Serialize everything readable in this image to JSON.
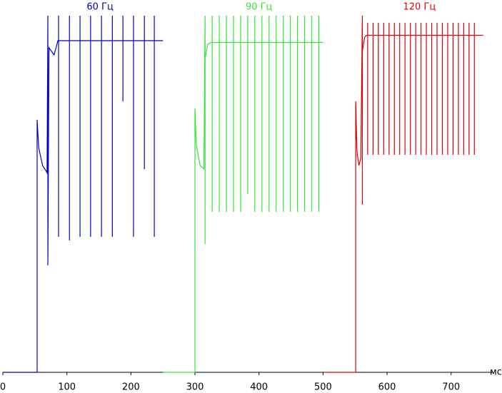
{
  "chart_data": {
    "type": "line",
    "x_label": "мс",
    "xlim": [
      0,
      765
    ],
    "ylim": [
      0,
      100
    ],
    "xticks": [
      0,
      100,
      200,
      300,
      400,
      500,
      600,
      700
    ],
    "series": [
      {
        "name": "60 Гц",
        "color": "#0000cc",
        "x": [
          0,
          53.5,
          53.5,
          56,
          62,
          69,
          70.3,
          70.3,
          72,
          80,
          86,
          87,
          87,
          87,
          87,
          104,
          104,
          104,
          104,
          120.5,
          120.5,
          120.5,
          120.5,
          137,
          137,
          137,
          137,
          154,
          154,
          154,
          154,
          171,
          171,
          171,
          171,
          187.5,
          187.5,
          187.5,
          187.5,
          204,
          204,
          204,
          204,
          221,
          221,
          221,
          221,
          236.5,
          236.5,
          236.5,
          236.5,
          250
        ],
        "values": [
          0,
          0,
          70.8,
          63,
          58,
          56,
          100,
          30,
          91,
          89,
          93,
          93,
          100,
          38,
          93,
          93,
          100,
          37,
          93,
          93,
          100,
          38,
          93,
          93,
          100,
          38,
          93,
          93,
          100,
          38,
          93,
          93,
          100,
          38,
          93,
          93,
          100,
          76,
          93,
          93,
          100,
          38,
          93,
          93,
          100,
          57,
          93,
          93,
          100,
          38,
          93,
          93
        ]
      },
      {
        "name": "90 Гц",
        "color": "#33e633",
        "x": [
          250,
          300,
          300,
          302,
          308,
          314,
          315.8,
          315.8,
          315.8,
          320,
          325,
          326.9,
          326.9,
          326.9,
          326.9,
          338,
          338,
          338,
          338,
          349.1,
          349.1,
          349.1,
          349.1,
          360.2,
          360.2,
          360.2,
          360.2,
          371.3,
          371.3,
          371.3,
          371.3,
          382.4,
          382.4,
          382.4,
          382.4,
          393.5,
          393.5,
          393.5,
          393.5,
          404.6,
          404.6,
          404.6,
          404.6,
          415.7,
          415.7,
          415.7,
          415.7,
          426.8,
          426.8,
          426.8,
          426.8,
          437.9,
          437.9,
          437.9,
          437.9,
          449,
          449,
          449,
          449,
          460.1,
          460.1,
          460.1,
          460.1,
          471.2,
          471.2,
          471.2,
          471.2,
          482.3,
          482.3,
          482.3,
          482.3,
          493.4,
          493.4,
          493.4,
          493.4,
          500
        ],
        "values": [
          0,
          0,
          74,
          64,
          58,
          57,
          100,
          36,
          88,
          92,
          92.5,
          92.5,
          100,
          45,
          92.5,
          92.5,
          100,
          45,
          92.5,
          92.5,
          100,
          45,
          92.5,
          92.5,
          100,
          45,
          92.5,
          92.5,
          100,
          45,
          92.5,
          92.5,
          100,
          50,
          92.5,
          92.5,
          100,
          45,
          92.5,
          92.5,
          100,
          45,
          92.5,
          92.5,
          100,
          45,
          92.5,
          92.5,
          100,
          45,
          92.5,
          92.5,
          100,
          45,
          92.5,
          92.5,
          100,
          45,
          92.5,
          92.5,
          100,
          45,
          92.5,
          92.5,
          100,
          45,
          92.5,
          92.5,
          100,
          45,
          92.5,
          92.5,
          100,
          45,
          92.5,
          92.5
        ]
      },
      {
        "name": "120 Гц",
        "color": "#e00000",
        "x": [
          501,
          551,
          551,
          553,
          556,
          559,
          561.4,
          561.4,
          561.4,
          565,
          568,
          569.7,
          569.7,
          569.7,
          569.7,
          578.1,
          578.1,
          578.1,
          578.1,
          586.4,
          586.4,
          586.4,
          586.4,
          594.7,
          594.7,
          594.7,
          594.7,
          603.1,
          603.1,
          603.1,
          603.1,
          611.4,
          611.4,
          611.4,
          611.4,
          619.7,
          619.7,
          619.7,
          619.7,
          628,
          628,
          628,
          628,
          636.4,
          636.4,
          636.4,
          636.4,
          644.7,
          644.7,
          644.7,
          644.7,
          653,
          653,
          653,
          653,
          661.4,
          661.4,
          661.4,
          661.4,
          669.7,
          669.7,
          669.7,
          669.7,
          678,
          678,
          678,
          678,
          686.4,
          686.4,
          686.4,
          686.4,
          694.7,
          694.7,
          694.7,
          694.7,
          703,
          703,
          703,
          703,
          711.4,
          711.4,
          711.4,
          711.4,
          719.7,
          719.7,
          719.7,
          719.7,
          728,
          728,
          728,
          728,
          736.3,
          736.3,
          736.3,
          736.3,
          750
        ],
        "values": [
          0,
          0,
          76,
          62,
          58,
          60,
          100,
          47,
          90,
          94,
          94.5,
          94.5,
          98,
          61,
          94.5,
          94.5,
          98,
          61,
          94.5,
          94.5,
          98,
          61,
          94.5,
          94.5,
          98,
          61,
          94.5,
          94.5,
          98,
          61,
          94.5,
          94.5,
          98,
          61,
          94.5,
          94.5,
          98,
          61,
          94.5,
          94.5,
          98,
          61,
          94.5,
          94.5,
          98,
          61,
          94.5,
          94.5,
          98,
          61,
          94.5,
          94.5,
          98,
          61,
          94.5,
          94.5,
          98,
          61,
          94.5,
          94.5,
          98,
          61,
          94.5,
          94.5,
          98,
          61,
          94.5,
          94.5,
          98,
          61,
          94.5,
          94.5,
          98,
          61,
          94.5,
          94.5,
          98,
          61,
          94.5,
          94.5,
          98,
          61,
          94.5,
          94.5,
          98,
          61,
          94.5,
          94.5,
          98,
          61,
          94.5,
          94.5,
          98,
          61,
          94.5,
          94.5
        ]
      }
    ]
  }
}
